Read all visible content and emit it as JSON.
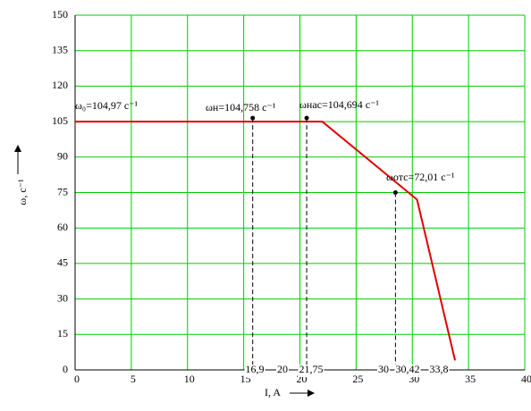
{
  "chart_data": {
    "type": "line",
    "x_label": "I, A",
    "y_label": "ω, c⁻¹",
    "xlim": [
      0,
      40
    ],
    "ylim": [
      0,
      150
    ],
    "xticks": [
      0,
      5,
      10,
      15,
      20,
      25,
      30,
      35,
      40
    ],
    "yticks": [
      0,
      15,
      30,
      45,
      60,
      75,
      90,
      105,
      120,
      135,
      150
    ],
    "grid": true,
    "grid_color": "#00cc00",
    "series": [
      {
        "color": "#e00000",
        "x": [
          0,
          22,
          30.42,
          33.8
        ],
        "values": [
          104.97,
          104.97,
          72.01,
          4
        ]
      }
    ],
    "points": {
      "color": "#000000",
      "x": [
        15.8,
        20.6,
        28.5
      ],
      "values": [
        106.5,
        106.5,
        75
      ]
    },
    "point_labels": [
      "ω₀=104,97 c⁻¹",
      "ωн=104,758 c⁻¹",
      "ωнас=104,694 c⁻¹",
      "ωотс=72,01 c⁻¹"
    ],
    "axis_annotations": [
      "16,9",
      "20",
      "21,75",
      "30",
      "30,42",
      "33,8"
    ]
  }
}
